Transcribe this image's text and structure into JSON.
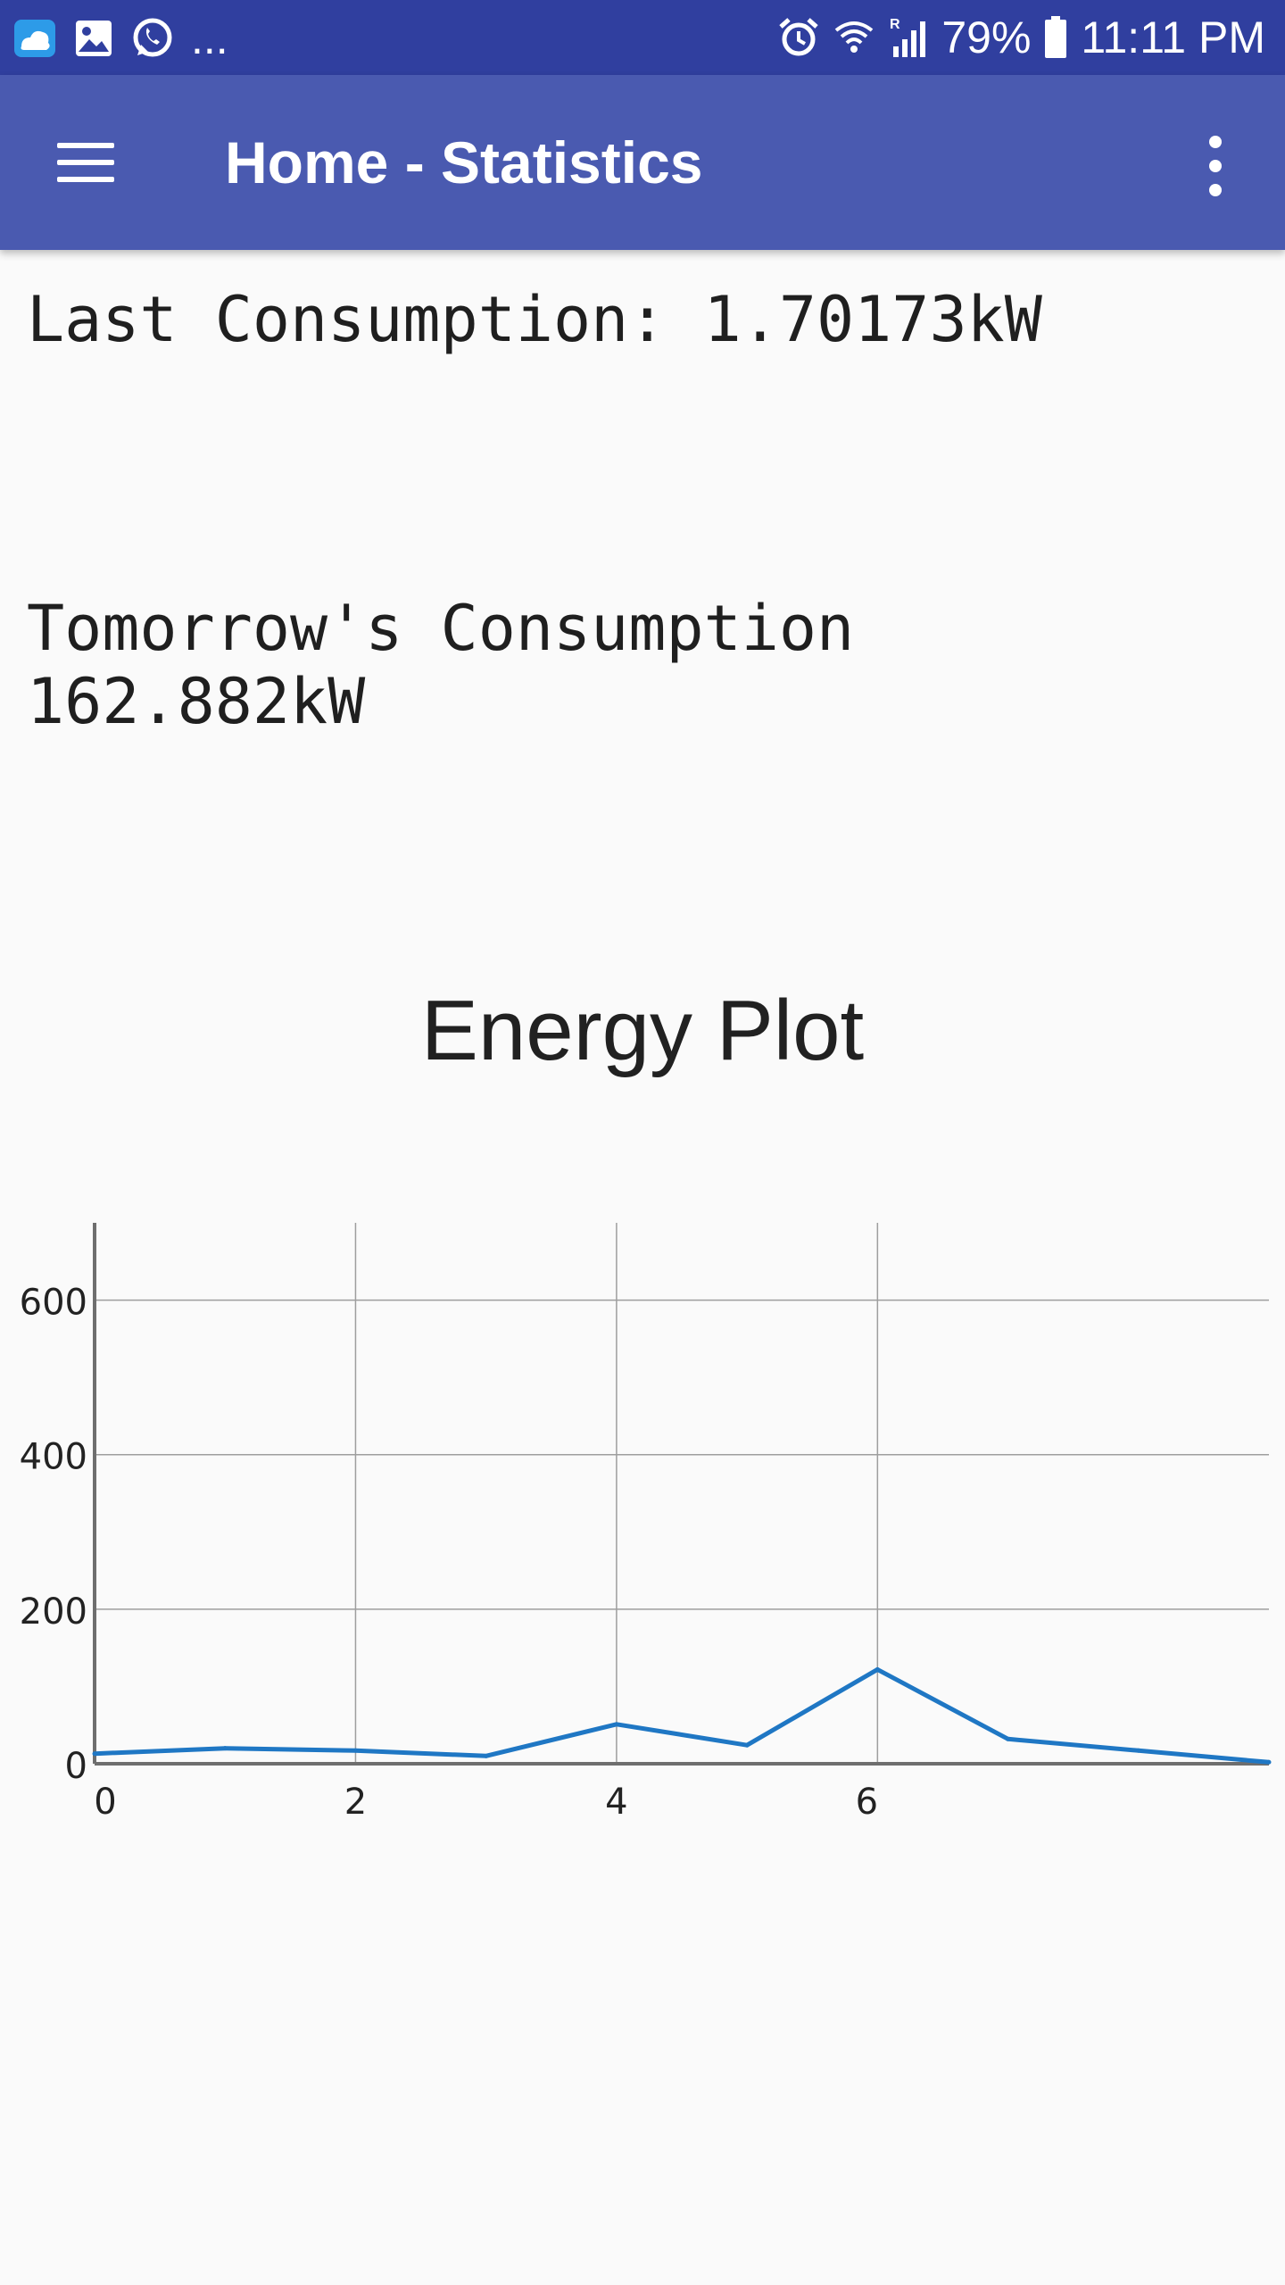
{
  "status_bar": {
    "notification_icons": [
      "cloud-app-icon",
      "gallery-icon",
      "whatsapp-icon"
    ],
    "more_indicator": "...",
    "battery": "79%",
    "time": "11:11 PM",
    "system_icons": [
      "alarm-icon",
      "wifi-icon",
      "signal-icon",
      "battery-icon"
    ]
  },
  "app_bar": {
    "title": "Home - Statistics",
    "menu_icon": "hamburger-menu-icon",
    "overflow_icon": "more-vert-icon",
    "color": "#4a5ab0"
  },
  "content": {
    "last_consumption": "Last Consumption: 1.70173kW",
    "tomorrow_label": "Tomorrow's Consumption",
    "tomorrow_value": "162.882kW"
  },
  "plot": {
    "title": "Energy Plot"
  },
  "chart_data": {
    "type": "line",
    "title": "Energy Plot",
    "x": [
      0,
      1,
      2,
      3,
      4,
      5,
      6,
      7,
      8,
      9
    ],
    "series": [
      {
        "values": [
          13,
          20,
          17,
          10,
          51,
          24,
          122,
          32,
          17,
          2
        ],
        "color": "#1f77c4"
      }
    ],
    "x_ticks": [
      "0",
      "2",
      "4",
      "6"
    ],
    "x_tick_values": [
      0,
      2,
      4,
      6
    ],
    "y_ticks": [
      "0",
      "200",
      "400",
      "600"
    ],
    "y_tick_values": [
      0,
      200,
      400,
      600
    ],
    "xlim": [
      0,
      9
    ],
    "ylim": [
      0,
      700
    ],
    "grid": true
  }
}
